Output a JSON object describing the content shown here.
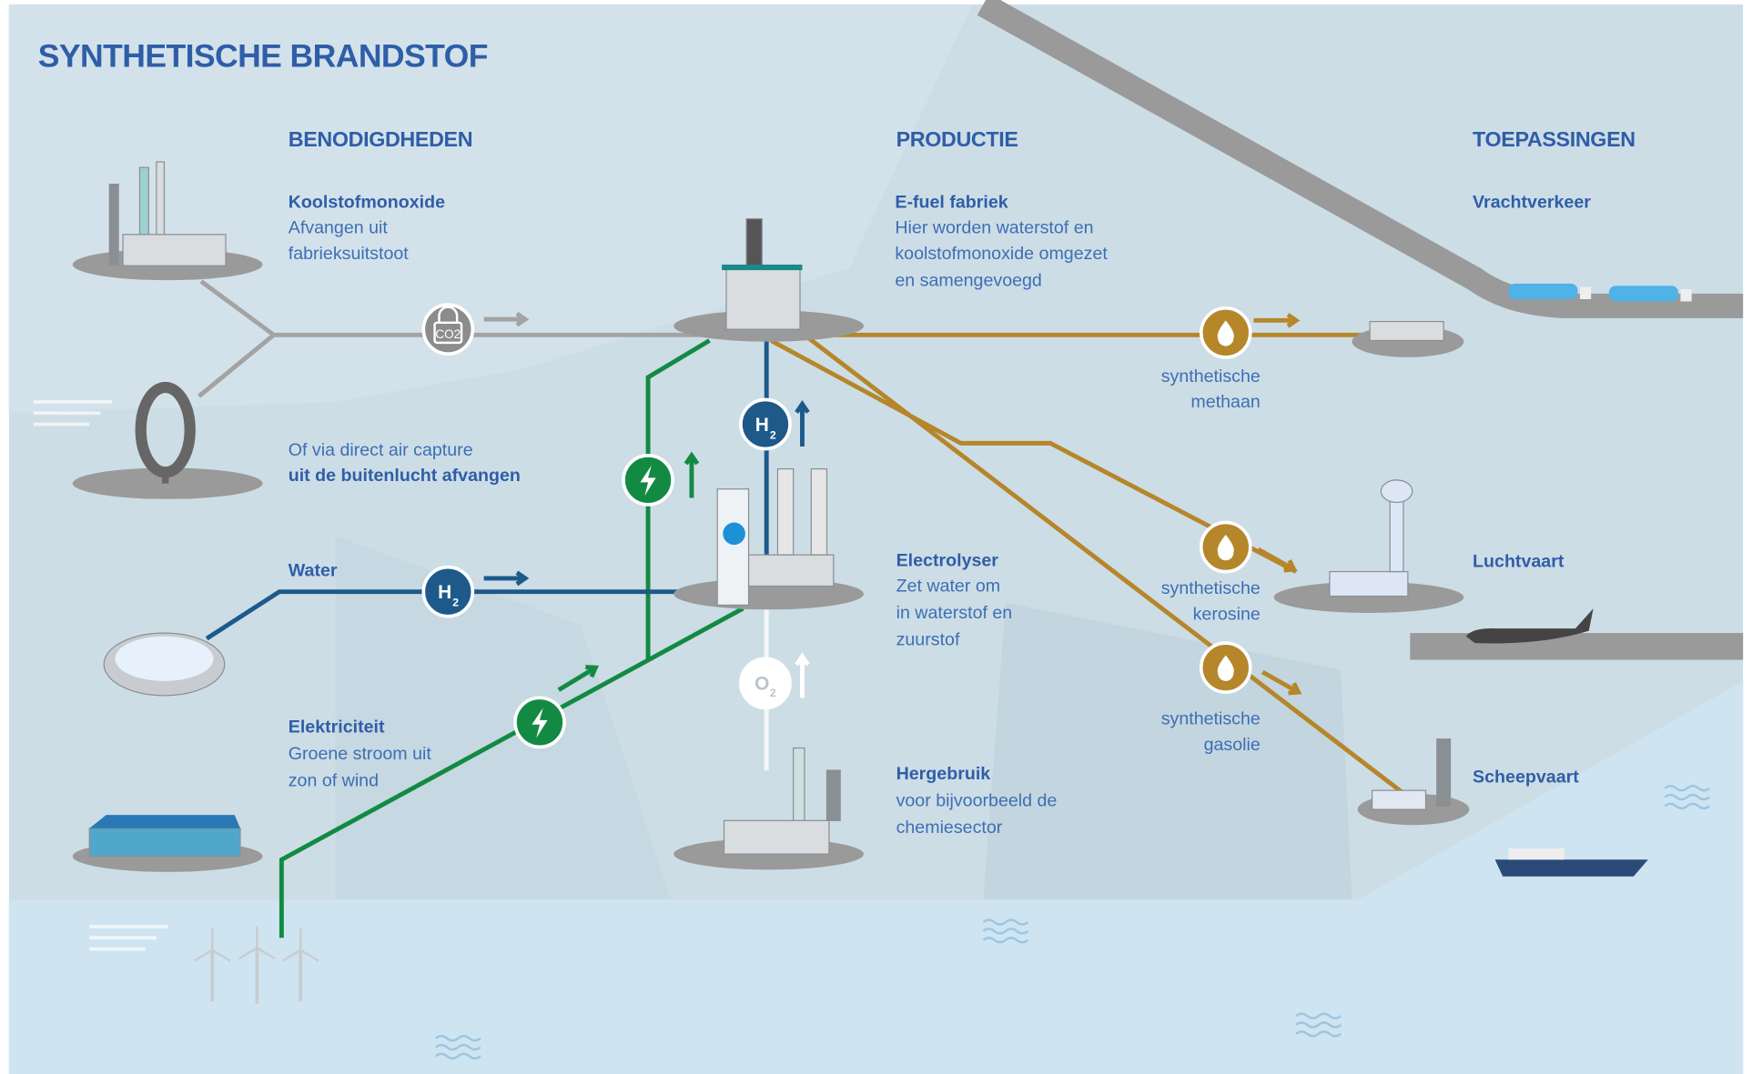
{
  "title": "SYNTHETISCHE BRANDSTOF",
  "columns": [
    "BENODIGDHEDEN",
    "PRODUCTIE",
    "TOEPASSINGEN"
  ],
  "requirements": [
    {
      "title": "Koolstofmonoxide",
      "lines": [
        "Afvangen uit",
        "fabrieksuitstoot"
      ]
    },
    {
      "lines": [
        "Of via direct air capture"
      ],
      "bold": "uit de buitenlucht afvangen"
    },
    {
      "title": "Water"
    },
    {
      "title": "Elektriciteit",
      "lines": [
        "Groene stroom uit",
        "zon of wind"
      ]
    }
  ],
  "production": [
    {
      "title": "E-fuel fabriek",
      "lines": [
        "Hier worden waterstof en",
        "koolstofmonoxide omgezet",
        "en samengevoegd"
      ]
    },
    {
      "title": "Electrolyser",
      "lines": [
        "Zet water om",
        "in waterstof en",
        "zuurstof"
      ]
    },
    {
      "title": "Hergebruik",
      "lines": [
        "voor bijvoorbeeld de",
        "chemiesector"
      ]
    }
  ],
  "applications": [
    {
      "title": "Vrachtverkeer"
    },
    {
      "title": "Luchtvaart"
    },
    {
      "title": "Scheepvaart"
    }
  ],
  "fuels": [
    [
      "synthetische",
      "methaan"
    ],
    [
      "synthetische",
      "kerosine"
    ],
    [
      "synthetische",
      "gasolie"
    ]
  ],
  "icons": {
    "co2": "CO2",
    "h2": {
      "symbol": "H",
      "sub": "2"
    },
    "o2": {
      "symbol": "O",
      "sub": "2"
    }
  }
}
